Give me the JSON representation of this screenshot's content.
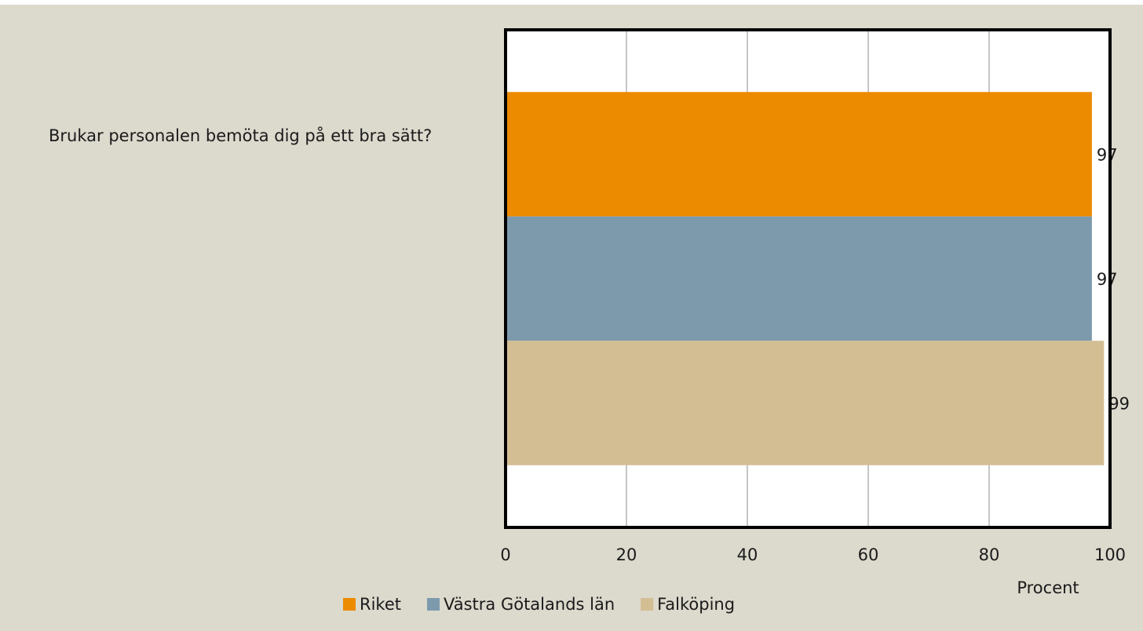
{
  "chart_data": {
    "type": "bar",
    "categories": [
      "Brukar personalen bemöta dig på ett bra sätt?"
    ],
    "series": [
      {
        "name": "Riket",
        "color": "#ec8a00",
        "values": [
          97
        ]
      },
      {
        "name": "Västra Götalands län",
        "color": "#7d9aad",
        "values": [
          97
        ]
      },
      {
        "name": "Falköping",
        "color": "#d3be94",
        "values": [
          99
        ]
      }
    ],
    "xlim": [
      0,
      100
    ],
    "xticks": [
      0,
      20,
      40,
      60,
      80,
      100
    ],
    "xlabel": "Procent",
    "grid": true,
    "legend": "bottom"
  }
}
